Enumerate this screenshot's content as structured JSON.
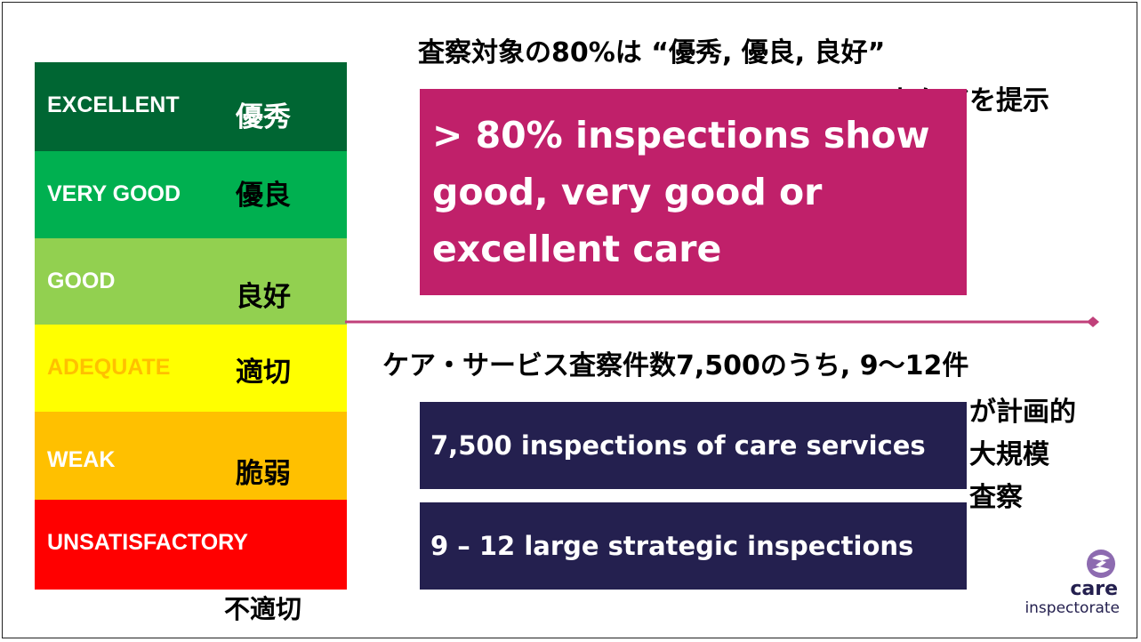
{
  "heading": {
    "line1": "査察対象の80%は “優秀, 優良, 良好”",
    "line2": "なケアを提示"
  },
  "bands": [
    {
      "en": "EXCELLENT",
      "ja": "優秀"
    },
    {
      "en": "VERY GOOD",
      "ja": "優良"
    },
    {
      "en": "GOOD",
      "ja": "良好"
    },
    {
      "en": "ADEQUATE",
      "ja": "適切"
    },
    {
      "en": "WEAK",
      "ja": "脆弱"
    },
    {
      "en": "UNSATISFACTORY",
      "ja": "不適切"
    }
  ],
  "highlight": "> 80% inspections show good, very good or excellent care",
  "subheading": {
    "line1": "ケア・サービス査察件数7,500のうち, 9〜12件",
    "line2": "が計画的",
    "line3": "大規模",
    "line4": "査察"
  },
  "boxes": [
    "7,500 inspections of care services",
    "9 – 12 large strategic inspections"
  ],
  "logo": {
    "line1": "care",
    "line2": "inspectorate"
  }
}
